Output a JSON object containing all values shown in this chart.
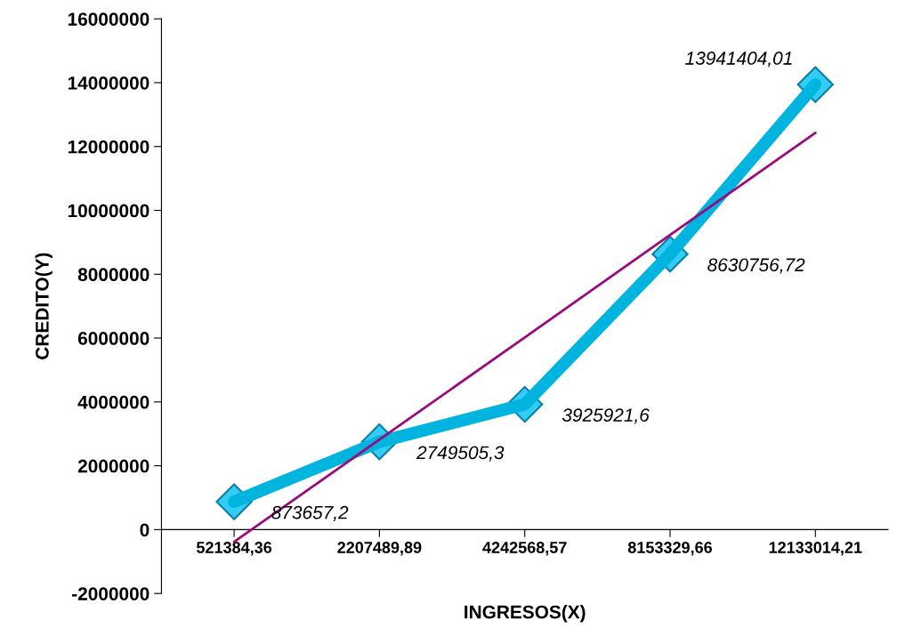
{
  "chart_data": {
    "type": "line",
    "xlabel": "INGRESOS(X)",
    "ylabel": "CREDITO(Y)",
    "categories": [
      "521384,36",
      "2207489,89",
      "4242568,57",
      "8153329,66",
      "12133014,21"
    ],
    "series": [
      {
        "color": "#00b4e0",
        "values": [
          873657.2,
          2749505.3,
          3925921.6,
          8630756.72,
          13941404.01
        ],
        "value_labels": [
          "873657,2",
          "2749505,3",
          "3925921,6",
          "8630756,72",
          "13941404,01"
        ],
        "marker": "diamond"
      },
      {
        "type": "line",
        "color": "#9b0a7d",
        "x": [
          "521384,36",
          "2207489,89",
          "4242568,57",
          "8153329,66",
          "12133014,21"
        ],
        "values": [
          -380000,
          2820000,
          6020000,
          9230000,
          12430000
        ],
        "marker": "none"
      }
    ],
    "ylim": [
      -2000000,
      16000000
    ],
    "yticks": [
      -2000000,
      0,
      2000000,
      4000000,
      6000000,
      8000000,
      10000000,
      12000000,
      14000000,
      16000000
    ],
    "grid": false,
    "legend": false
  }
}
